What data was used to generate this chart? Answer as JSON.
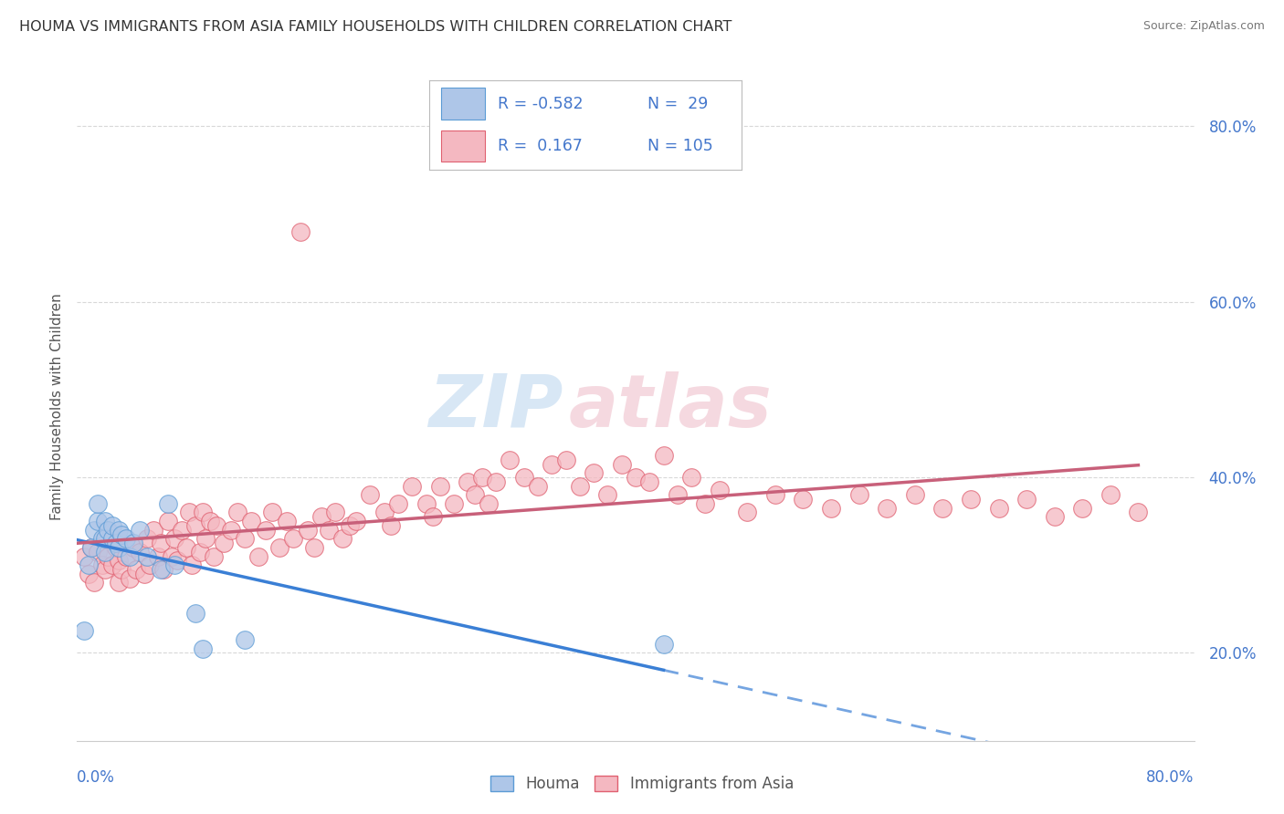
{
  "title": "HOUMA VS IMMIGRANTS FROM ASIA FAMILY HOUSEHOLDS WITH CHILDREN CORRELATION CHART",
  "source": "Source: ZipAtlas.com",
  "xlabel_bottom_left": "0.0%",
  "xlabel_bottom_right": "80.0%",
  "ylabel": "Family Households with Children",
  "xmin": 0.0,
  "xmax": 0.8,
  "ymin": 0.1,
  "ymax": 0.86,
  "yticks": [
    0.2,
    0.4,
    0.6,
    0.8
  ],
  "ytick_labels": [
    "20.0%",
    "40.0%",
    "60.0%",
    "80.0%"
  ],
  "houma_color": "#aec6e8",
  "houma_edge": "#5b9bd5",
  "asia_color": "#f4b8c1",
  "asia_edge": "#e06070",
  "houma_R": -0.582,
  "houma_N": 29,
  "asia_R": 0.167,
  "asia_N": 105,
  "legend_R_color": "#4477cc",
  "houma_scatter_x": [
    0.005,
    0.008,
    0.01,
    0.012,
    0.015,
    0.015,
    0.018,
    0.02,
    0.02,
    0.02,
    0.022,
    0.025,
    0.025,
    0.028,
    0.03,
    0.03,
    0.032,
    0.035,
    0.038,
    0.04,
    0.045,
    0.05,
    0.06,
    0.065,
    0.07,
    0.085,
    0.09,
    0.12,
    0.42
  ],
  "houma_scatter_y": [
    0.225,
    0.3,
    0.32,
    0.34,
    0.35,
    0.37,
    0.33,
    0.315,
    0.33,
    0.35,
    0.34,
    0.33,
    0.345,
    0.325,
    0.32,
    0.34,
    0.335,
    0.33,
    0.31,
    0.325,
    0.34,
    0.31,
    0.295,
    0.37,
    0.3,
    0.245,
    0.205,
    0.215,
    0.21
  ],
  "asia_scatter_x": [
    0.005,
    0.008,
    0.01,
    0.012,
    0.015,
    0.018,
    0.02,
    0.022,
    0.025,
    0.028,
    0.03,
    0.03,
    0.032,
    0.035,
    0.038,
    0.04,
    0.042,
    0.045,
    0.048,
    0.05,
    0.052,
    0.055,
    0.058,
    0.06,
    0.062,
    0.065,
    0.068,
    0.07,
    0.072,
    0.075,
    0.078,
    0.08,
    0.082,
    0.085,
    0.088,
    0.09,
    0.092,
    0.095,
    0.098,
    0.1,
    0.105,
    0.11,
    0.115,
    0.12,
    0.125,
    0.13,
    0.135,
    0.14,
    0.145,
    0.15,
    0.155,
    0.16,
    0.165,
    0.17,
    0.175,
    0.18,
    0.185,
    0.19,
    0.195,
    0.2,
    0.21,
    0.22,
    0.225,
    0.23,
    0.24,
    0.25,
    0.255,
    0.26,
    0.27,
    0.28,
    0.285,
    0.29,
    0.295,
    0.3,
    0.31,
    0.32,
    0.33,
    0.34,
    0.35,
    0.36,
    0.37,
    0.38,
    0.39,
    0.4,
    0.41,
    0.42,
    0.43,
    0.44,
    0.45,
    0.46,
    0.48,
    0.5,
    0.52,
    0.54,
    0.56,
    0.58,
    0.6,
    0.62,
    0.64,
    0.66,
    0.68,
    0.7,
    0.72,
    0.74,
    0.76
  ],
  "asia_scatter_y": [
    0.31,
    0.29,
    0.32,
    0.28,
    0.315,
    0.3,
    0.295,
    0.31,
    0.3,
    0.32,
    0.28,
    0.305,
    0.295,
    0.31,
    0.285,
    0.32,
    0.295,
    0.315,
    0.29,
    0.33,
    0.3,
    0.34,
    0.31,
    0.325,
    0.295,
    0.35,
    0.31,
    0.33,
    0.305,
    0.34,
    0.32,
    0.36,
    0.3,
    0.345,
    0.315,
    0.36,
    0.33,
    0.35,
    0.31,
    0.345,
    0.325,
    0.34,
    0.36,
    0.33,
    0.35,
    0.31,
    0.34,
    0.36,
    0.32,
    0.35,
    0.33,
    0.68,
    0.34,
    0.32,
    0.355,
    0.34,
    0.36,
    0.33,
    0.345,
    0.35,
    0.38,
    0.36,
    0.345,
    0.37,
    0.39,
    0.37,
    0.355,
    0.39,
    0.37,
    0.395,
    0.38,
    0.4,
    0.37,
    0.395,
    0.42,
    0.4,
    0.39,
    0.415,
    0.42,
    0.39,
    0.405,
    0.38,
    0.415,
    0.4,
    0.395,
    0.425,
    0.38,
    0.4,
    0.37,
    0.385,
    0.36,
    0.38,
    0.375,
    0.365,
    0.38,
    0.365,
    0.38,
    0.365,
    0.375,
    0.365,
    0.375,
    0.355,
    0.365,
    0.38,
    0.36
  ],
  "bg_color": "#ffffff",
  "grid_color": "#d8d8d8",
  "axis_color": "#cccccc",
  "tick_color": "#4477cc",
  "houma_line_color": "#3a7fd5",
  "asia_line_color": "#c8607a",
  "houma_line_solid_end": 0.42,
  "asia_line_end": 0.76
}
